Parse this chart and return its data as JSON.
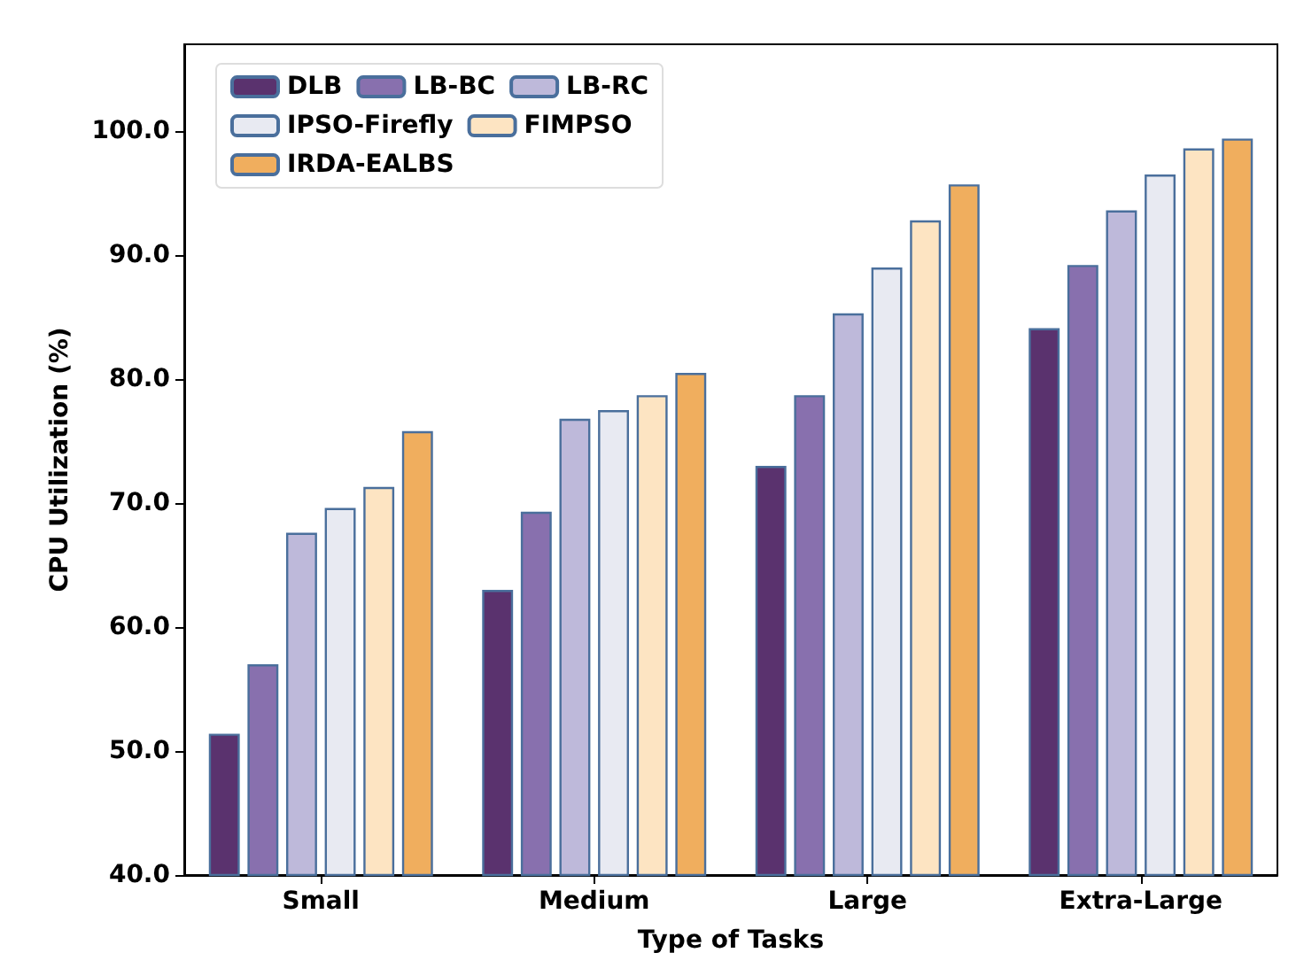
{
  "chart_data": {
    "type": "bar",
    "xlabel": "Type of Tasks",
    "ylabel": "CPU Utilization (%)",
    "categories": [
      "Small",
      "Medium",
      "Large",
      "Extra-Large"
    ],
    "series": [
      {
        "name": "DLB",
        "color": "#5a326e",
        "values": [
          51.4,
          63.0,
          73.0,
          84.1
        ]
      },
      {
        "name": "LB-BC",
        "color": "#8870ae",
        "values": [
          57.0,
          69.3,
          78.7,
          89.2
        ]
      },
      {
        "name": "LB-RC",
        "color": "#beb9da",
        "values": [
          67.6,
          76.8,
          85.3,
          93.6
        ]
      },
      {
        "name": "IPSO-Firefly",
        "color": "#e8eaf2",
        "values": [
          69.6,
          77.5,
          89.0,
          96.5
        ]
      },
      {
        "name": "FIMPSO",
        "color": "#fde4c2",
        "values": [
          71.3,
          78.7,
          92.8,
          98.6
        ]
      },
      {
        "name": "IRDA-EALBS",
        "color": "#f0ae5e",
        "values": [
          75.8,
          80.5,
          95.7,
          99.4
        ]
      }
    ],
    "ylim": [
      40,
      107
    ],
    "yticks": [
      {
        "value": 40,
        "label": "40.0"
      },
      {
        "value": 50,
        "label": "50.0"
      },
      {
        "value": 60,
        "label": "60.0"
      },
      {
        "value": 70,
        "label": "70.0"
      },
      {
        "value": 80,
        "label": "80.0"
      },
      {
        "value": 90,
        "label": "90.0"
      },
      {
        "value": 100,
        "label": "100.0"
      }
    ],
    "grid": false,
    "legend": "top left"
  }
}
